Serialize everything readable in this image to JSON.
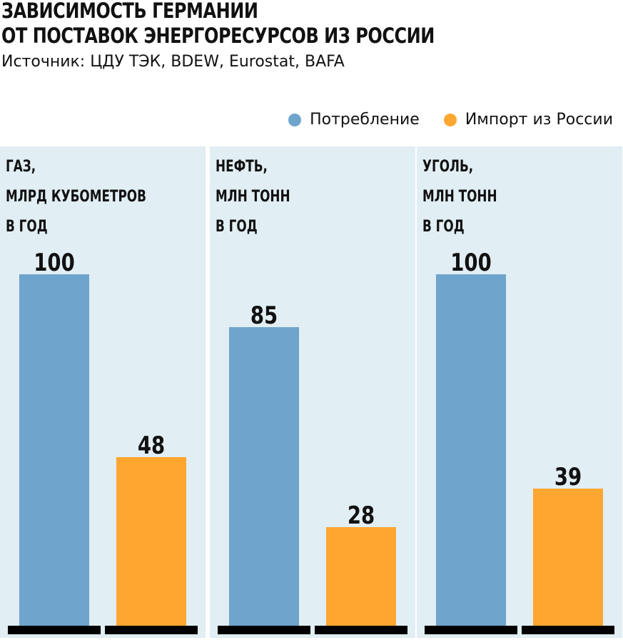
{
  "title_line1": "ЗАВИСИМОСТЬ ГЕРМАНИИ",
  "title_line2": "ОТ ПОСТАВОК ЭНЕРГОРЕСУРСОВ ИЗ РОССИИ",
  "source": "Источник: ЦДУ ТЭК, BDEW, Eurostat, BAFA",
  "colors": {
    "consumption": "#6fa4cc",
    "import": "#ffa631",
    "panel": "#e1eef4"
  },
  "chart_data": {
    "type": "bar",
    "title": "ЗАВИСИМОСТЬ ГЕРМАНИИ ОТ ПОСТАВОК ЭНЕРГОРЕСУРСОВ ИЗ РОССИИ",
    "legend": [
      "Потребление",
      "Импорт из России"
    ],
    "legend_position": "top-right",
    "ylim": [
      0,
      100
    ],
    "grid": false,
    "panels": [
      {
        "title": "ГАЗ,\nМЛРД КУБОМЕТРОВ\nВ ГОД",
        "consumption": 100,
        "import": 48
      },
      {
        "title": "НЕФТЬ,\nМЛН ТОНН\nВ ГОД",
        "consumption": 85,
        "import": 28
      },
      {
        "title": "УГОЛЬ,\nМЛН ТОНН\nВ ГОД",
        "consumption": 100,
        "import": 39
      }
    ]
  }
}
